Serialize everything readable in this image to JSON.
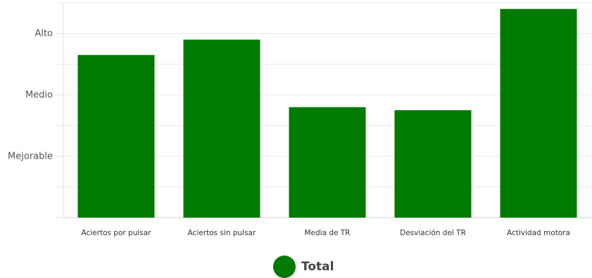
{
  "chart_data": {
    "type": "bar",
    "categories": [
      "Aciertos por pulsar",
      "Aciertos sin pulsar",
      "Media de TR",
      "Desviación del TR",
      "Actividad motora"
    ],
    "series": [
      {
        "name": "Total",
        "values": [
          2.65,
          2.9,
          1.8,
          1.75,
          3.4
        ],
        "color": "#007a00"
      }
    ],
    "ylim": [
      0,
      3.5
    ],
    "yticks": [
      {
        "value": 1,
        "label": "Mejorable"
      },
      {
        "value": 2,
        "label": "Medio"
      },
      {
        "value": 3,
        "label": "Alto"
      }
    ],
    "grid": true,
    "legend_position": "bottom-center"
  }
}
